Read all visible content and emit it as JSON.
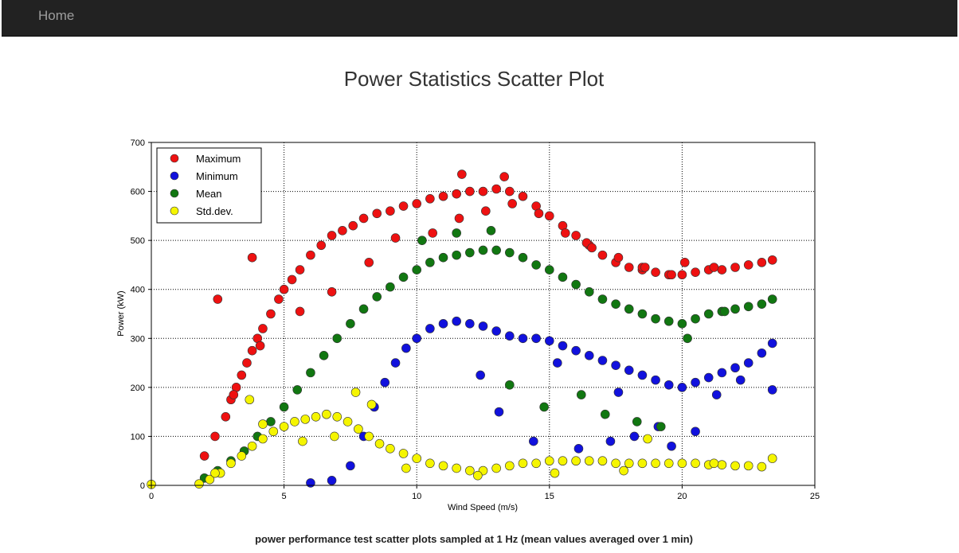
{
  "nav": {
    "home_label": "Home"
  },
  "page": {
    "title": "Power Statistics Scatter Plot",
    "caption": "power performance test scatter plots sampled at 1 Hz (mean values averaged over 1 min)"
  },
  "colors": {
    "navbar": "#222222",
    "maximum": "#ee1111",
    "minimum": "#1111dd",
    "mean": "#117711",
    "stddev": "#f5f500"
  },
  "chart_data": {
    "type": "scatter",
    "xlabel": "Wind Speed (m/s)",
    "ylabel": "Power (kW)",
    "xlim": [
      0,
      25
    ],
    "ylim": [
      0,
      700
    ],
    "xticks": [
      0,
      5,
      10,
      15,
      20,
      25
    ],
    "yticks": [
      0,
      100,
      200,
      300,
      400,
      500,
      600,
      700
    ],
    "grid": true,
    "grid_style": "dotted",
    "legend_position": "top-left",
    "series": [
      {
        "name": "Maximum",
        "color": "#ee1111",
        "x": [
          2.0,
          2.4,
          2.8,
          3.0,
          3.2,
          3.4,
          3.6,
          3.8,
          4.0,
          4.2,
          4.5,
          4.8,
          5.0,
          5.3,
          5.6,
          6.0,
          6.4,
          6.8,
          7.2,
          7.6,
          8.0,
          8.5,
          9.0,
          9.5,
          10.0,
          10.5,
          11.0,
          11.5,
          12.0,
          12.5,
          13.0,
          13.5,
          14.0,
          14.5,
          15.0,
          15.5,
          16.0,
          16.5,
          17.0,
          17.5,
          18.0,
          18.5,
          19.0,
          19.5,
          20.0,
          20.5,
          21.0,
          21.5,
          22.0,
          22.5,
          23.0,
          23.4,
          2.5,
          3.8,
          11.7,
          13.3,
          16.4,
          18.5,
          20.1,
          21.2,
          3.1,
          4.1,
          5.6,
          6.8,
          8.2,
          9.2,
          10.6,
          11.6,
          12.6,
          13.6,
          14.6,
          15.6,
          16.6,
          17.6,
          18.6,
          19.6
        ],
        "y": [
          60,
          100,
          140,
          175,
          200,
          225,
          250,
          275,
          300,
          320,
          350,
          380,
          400,
          420,
          440,
          470,
          490,
          510,
          520,
          530,
          545,
          555,
          560,
          570,
          575,
          585,
          590,
          595,
          600,
          600,
          605,
          600,
          590,
          570,
          550,
          530,
          510,
          490,
          470,
          455,
          445,
          440,
          435,
          430,
          430,
          435,
          440,
          440,
          445,
          450,
          455,
          460,
          380,
          465,
          635,
          630,
          495,
          445,
          455,
          445,
          185,
          285,
          355,
          395,
          455,
          505,
          515,
          545,
          560,
          575,
          555,
          515,
          485,
          465,
          445,
          430
        ]
      },
      {
        "name": "Minimum",
        "color": "#1111dd",
        "x": [
          6.0,
          6.8,
          7.5,
          8.0,
          8.4,
          8.8,
          9.2,
          9.6,
          10.0,
          10.5,
          11.0,
          11.5,
          12.0,
          12.5,
          13.0,
          13.5,
          14.0,
          14.5,
          15.0,
          15.5,
          16.0,
          16.5,
          17.0,
          17.5,
          18.0,
          18.5,
          19.0,
          19.5,
          20.0,
          20.5,
          21.0,
          21.5,
          22.0,
          22.5,
          23.0,
          23.4,
          13.1,
          14.4,
          16.1,
          17.3,
          18.2,
          19.1,
          19.6,
          20.5,
          21.3,
          22.2,
          23.4,
          12.4,
          15.3,
          17.6
        ],
        "y": [
          5,
          10,
          40,
          100,
          160,
          210,
          250,
          280,
          300,
          320,
          330,
          335,
          330,
          325,
          315,
          305,
          300,
          300,
          295,
          285,
          275,
          265,
          255,
          245,
          235,
          225,
          215,
          205,
          200,
          210,
          220,
          230,
          240,
          250,
          270,
          290,
          150,
          90,
          75,
          90,
          100,
          120,
          80,
          110,
          185,
          215,
          195,
          225,
          250,
          190
        ]
      },
      {
        "name": "Mean",
        "color": "#117711",
        "x": [
          2.0,
          2.5,
          3.0,
          3.5,
          4.0,
          4.5,
          5.0,
          5.5,
          6.0,
          6.5,
          7.0,
          7.5,
          8.0,
          8.5,
          9.0,
          9.5,
          10.0,
          10.5,
          11.0,
          11.5,
          12.0,
          12.5,
          13.0,
          13.5,
          14.0,
          14.5,
          15.0,
          15.5,
          16.0,
          16.5,
          17.0,
          17.5,
          18.0,
          18.5,
          19.0,
          19.5,
          20.0,
          20.5,
          21.0,
          21.5,
          22.0,
          22.5,
          23.0,
          23.4,
          13.5,
          14.8,
          16.2,
          17.1,
          18.3,
          19.2,
          20.2,
          21.6,
          10.2,
          11.5,
          12.8
        ],
        "y": [
          15,
          30,
          50,
          70,
          100,
          130,
          160,
          195,
          230,
          265,
          300,
          330,
          360,
          385,
          405,
          425,
          440,
          455,
          465,
          470,
          475,
          480,
          480,
          475,
          465,
          450,
          440,
          425,
          410,
          395,
          380,
          370,
          360,
          350,
          340,
          335,
          330,
          340,
          350,
          355,
          360,
          365,
          370,
          380,
          205,
          160,
          185,
          145,
          130,
          120,
          300,
          355,
          500,
          515,
          520
        ]
      },
      {
        "name": "Std.dev.",
        "color": "#f5f500",
        "x": [
          1.8,
          2.2,
          2.6,
          3.0,
          3.4,
          3.8,
          4.2,
          4.6,
          5.0,
          5.4,
          5.8,
          6.2,
          6.6,
          7.0,
          7.4,
          7.8,
          8.2,
          8.6,
          9.0,
          9.5,
          10.0,
          10.5,
          11.0,
          11.5,
          12.0,
          12.5,
          13.0,
          13.5,
          14.0,
          14.5,
          15.0,
          15.5,
          16.0,
          16.5,
          17.0,
          17.5,
          18.0,
          18.5,
          19.0,
          19.5,
          20.0,
          20.5,
          21.0,
          21.5,
          22.0,
          22.5,
          23.0,
          23.4,
          0.0,
          3.7,
          4.2,
          7.7,
          8.3,
          18.7,
          21.2,
          2.4,
          5.7,
          6.9,
          9.6,
          12.3,
          15.2,
          17.8
        ],
        "y": [
          3,
          12,
          25,
          45,
          60,
          80,
          95,
          110,
          120,
          130,
          135,
          140,
          145,
          140,
          130,
          115,
          100,
          85,
          75,
          65,
          55,
          45,
          40,
          35,
          30,
          30,
          35,
          40,
          45,
          45,
          50,
          50,
          50,
          50,
          50,
          45,
          45,
          45,
          45,
          45,
          45,
          45,
          42,
          42,
          40,
          40,
          38,
          55,
          2,
          175,
          125,
          190,
          165,
          95,
          45,
          25,
          90,
          100,
          35,
          20,
          25,
          30
        ]
      }
    ]
  }
}
